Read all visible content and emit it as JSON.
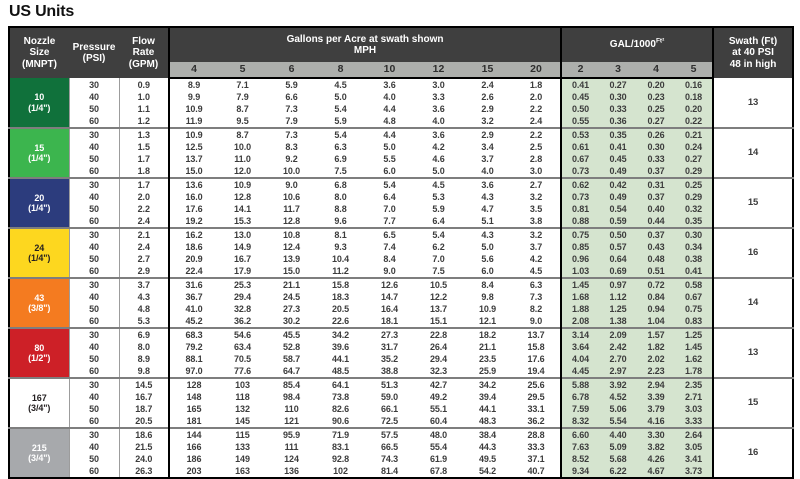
{
  "title": "US Units",
  "colors": {
    "header_bg": "#3f3f3f",
    "subheader_bg": "#adafac",
    "gal_block_bg": "#d5e4cf",
    "group_separator": "#7e7e7e",
    "text": "#3c3c3c"
  },
  "table": {
    "col_headers": {
      "nozzle": "Nozzle\nSize\n(MNPT)",
      "pressure": "Pressure\n(PSI)",
      "flow": "Flow\nRate\n(GPM)",
      "gpa_title": "Gallons per Acre at swath shown",
      "gpa_sub": "MPH",
      "mph_values": [
        "4",
        "5",
        "6",
        "8",
        "10",
        "12",
        "15",
        "20"
      ],
      "gal_title": "GAL/1000",
      "gal_sup": "Ft²",
      "gal_values": [
        "2",
        "3",
        "4",
        "5"
      ],
      "swath": "Swath (Ft)\nat 40 PSI\n48 in high"
    },
    "groups": [
      {
        "nozzle": "10",
        "size": "(1/4\")",
        "bg": "#10713b",
        "fg": "#ffffff",
        "swath": "13",
        "rows": [
          {
            "psi": "30",
            "gpm": "0.9",
            "mph": [
              "8.9",
              "7.1",
              "5.9",
              "4.5",
              "3.6",
              "3.0",
              "2.4",
              "1.8"
            ],
            "gal": [
              "0.41",
              "0.27",
              "0.20",
              "0.16"
            ]
          },
          {
            "psi": "40",
            "gpm": "1.0",
            "mph": [
              "9.9",
              "7.9",
              "6.6",
              "5.0",
              "4.0",
              "3.3",
              "2.6",
              "2.0"
            ],
            "gal": [
              "0.45",
              "0.30",
              "0.23",
              "0.18"
            ]
          },
          {
            "psi": "50",
            "gpm": "1.1",
            "mph": [
              "10.9",
              "8.7",
              "7.3",
              "5.4",
              "4.4",
              "3.6",
              "2.9",
              "2.2"
            ],
            "gal": [
              "0.50",
              "0.33",
              "0.25",
              "0.20"
            ]
          },
          {
            "psi": "60",
            "gpm": "1.2",
            "mph": [
              "11.9",
              "9.5",
              "7.9",
              "5.9",
              "4.8",
              "4.0",
              "3.2",
              "2.4"
            ],
            "gal": [
              "0.55",
              "0.36",
              "0.27",
              "0.22"
            ]
          }
        ]
      },
      {
        "nozzle": "15",
        "size": "(1/4\")",
        "bg": "#3cb54e",
        "fg": "#ffffff",
        "swath": "14",
        "rows": [
          {
            "psi": "30",
            "gpm": "1.3",
            "mph": [
              "10.9",
              "8.7",
              "7.3",
              "5.4",
              "4.4",
              "3.6",
              "2.9",
              "2.2"
            ],
            "gal": [
              "0.53",
              "0.35",
              "0.26",
              "0.21"
            ]
          },
          {
            "psi": "40",
            "gpm": "1.5",
            "mph": [
              "12.5",
              "10.0",
              "8.3",
              "6.3",
              "5.0",
              "4.2",
              "3.4",
              "2.5"
            ],
            "gal": [
              "0.61",
              "0.41",
              "0.30",
              "0.24"
            ]
          },
          {
            "psi": "50",
            "gpm": "1.7",
            "mph": [
              "13.7",
              "11.0",
              "9.2",
              "6.9",
              "5.5",
              "4.6",
              "3.7",
              "2.8"
            ],
            "gal": [
              "0.67",
              "0.45",
              "0.33",
              "0.27"
            ]
          },
          {
            "psi": "60",
            "gpm": "1.8",
            "mph": [
              "15.0",
              "12.0",
              "10.0",
              "7.5",
              "6.0",
              "5.0",
              "4.0",
              "3.0"
            ],
            "gal": [
              "0.73",
              "0.49",
              "0.37",
              "0.29"
            ]
          }
        ]
      },
      {
        "nozzle": "20",
        "size": "(1/4\")",
        "bg": "#2c3c7d",
        "fg": "#ffffff",
        "swath": "15",
        "rows": [
          {
            "psi": "30",
            "gpm": "1.7",
            "mph": [
              "13.6",
              "10.9",
              "9.0",
              "6.8",
              "5.4",
              "4.5",
              "3.6",
              "2.7"
            ],
            "gal": [
              "0.62",
              "0.42",
              "0.31",
              "0.25"
            ]
          },
          {
            "psi": "40",
            "gpm": "2.0",
            "mph": [
              "16.0",
              "12.8",
              "10.6",
              "8.0",
              "6.4",
              "5.3",
              "4.3",
              "3.2"
            ],
            "gal": [
              "0.73",
              "0.49",
              "0.37",
              "0.29"
            ]
          },
          {
            "psi": "50",
            "gpm": "2.2",
            "mph": [
              "17.6",
              "14.1",
              "11.7",
              "8.8",
              "7.0",
              "5.9",
              "4.7",
              "3.5"
            ],
            "gal": [
              "0.81",
              "0.54",
              "0.40",
              "0.32"
            ]
          },
          {
            "psi": "60",
            "gpm": "2.4",
            "mph": [
              "19.2",
              "15.3",
              "12.8",
              "9.6",
              "7.7",
              "6.4",
              "5.1",
              "3.8"
            ],
            "gal": [
              "0.88",
              "0.59",
              "0.44",
              "0.35"
            ]
          }
        ]
      },
      {
        "nozzle": "24",
        "size": "(1/4\")",
        "bg": "#fdd71f",
        "fg": "#231f20",
        "swath": "16",
        "rows": [
          {
            "psi": "30",
            "gpm": "2.1",
            "mph": [
              "16.2",
              "13.0",
              "10.8",
              "8.1",
              "6.5",
              "5.4",
              "4.3",
              "3.2"
            ],
            "gal": [
              "0.75",
              "0.50",
              "0.37",
              "0.30"
            ]
          },
          {
            "psi": "40",
            "gpm": "2.4",
            "mph": [
              "18.6",
              "14.9",
              "12.4",
              "9.3",
              "7.4",
              "6.2",
              "5.0",
              "3.7"
            ],
            "gal": [
              "0.85",
              "0.57",
              "0.43",
              "0.34"
            ]
          },
          {
            "psi": "50",
            "gpm": "2.7",
            "mph": [
              "20.9",
              "16.7",
              "13.9",
              "10.4",
              "8.4",
              "7.0",
              "5.6",
              "4.2"
            ],
            "gal": [
              "0.96",
              "0.64",
              "0.48",
              "0.38"
            ]
          },
          {
            "psi": "60",
            "gpm": "2.9",
            "mph": [
              "22.4",
              "17.9",
              "15.0",
              "11.2",
              "9.0",
              "7.5",
              "6.0",
              "4.5"
            ],
            "gal": [
              "1.03",
              "0.69",
              "0.51",
              "0.41"
            ]
          }
        ]
      },
      {
        "nozzle": "43",
        "size": "(3/8\")",
        "bg": "#f47b20",
        "fg": "#ffffff",
        "swath": "14",
        "rows": [
          {
            "psi": "30",
            "gpm": "3.7",
            "mph": [
              "31.6",
              "25.3",
              "21.1",
              "15.8",
              "12.6",
              "10.5",
              "8.4",
              "6.3"
            ],
            "gal": [
              "1.45",
              "0.97",
              "0.72",
              "0.58"
            ]
          },
          {
            "psi": "40",
            "gpm": "4.3",
            "mph": [
              "36.7",
              "29.4",
              "24.5",
              "18.3",
              "14.7",
              "12.2",
              "9.8",
              "7.3"
            ],
            "gal": [
              "1.68",
              "1.12",
              "0.84",
              "0.67"
            ]
          },
          {
            "psi": "50",
            "gpm": "4.8",
            "mph": [
              "41.0",
              "32.8",
              "27.3",
              "20.5",
              "16.4",
              "13.7",
              "10.9",
              "8.2"
            ],
            "gal": [
              "1.88",
              "1.25",
              "0.94",
              "0.75"
            ]
          },
          {
            "psi": "60",
            "gpm": "5.3",
            "mph": [
              "45.2",
              "36.2",
              "30.2",
              "22.6",
              "18.1",
              "15.1",
              "12.1",
              "9.0"
            ],
            "gal": [
              "2.08",
              "1.38",
              "1.04",
              "0.83"
            ]
          }
        ]
      },
      {
        "nozzle": "80",
        "size": "(1/2\")",
        "bg": "#cd2027",
        "fg": "#ffffff",
        "swath": "13",
        "rows": [
          {
            "psi": "30",
            "gpm": "6.9",
            "mph": [
              "68.3",
              "54.6",
              "45.5",
              "34.2",
              "27.3",
              "22.8",
              "18.2",
              "13.7"
            ],
            "gal": [
              "3.14",
              "2.09",
              "1.57",
              "1.25"
            ]
          },
          {
            "psi": "40",
            "gpm": "8.0",
            "mph": [
              "79.2",
              "63.4",
              "52.8",
              "39.6",
              "31.7",
              "26.4",
              "21.1",
              "15.8"
            ],
            "gal": [
              "3.64",
              "2.42",
              "1.82",
              "1.45"
            ]
          },
          {
            "psi": "50",
            "gpm": "8.9",
            "mph": [
              "88.1",
              "70.5",
              "58.7",
              "44.1",
              "35.2",
              "29.4",
              "23.5",
              "17.6"
            ],
            "gal": [
              "4.04",
              "2.70",
              "2.02",
              "1.62"
            ]
          },
          {
            "psi": "60",
            "gpm": "9.8",
            "mph": [
              "97.0",
              "77.6",
              "64.7",
              "48.5",
              "38.8",
              "32.3",
              "25.9",
              "19.4"
            ],
            "gal": [
              "4.45",
              "2.97",
              "2.23",
              "1.78"
            ]
          }
        ]
      },
      {
        "nozzle": "167",
        "size": "(3/4\")",
        "bg": "#ffffff",
        "fg": "#231f20",
        "swath": "15",
        "rows": [
          {
            "psi": "30",
            "gpm": "14.5",
            "mph": [
              "128",
              "103",
              "85.4",
              "64.1",
              "51.3",
              "42.7",
              "34.2",
              "25.6"
            ],
            "gal": [
              "5.88",
              "3.92",
              "2.94",
              "2.35"
            ]
          },
          {
            "psi": "40",
            "gpm": "16.7",
            "mph": [
              "148",
              "118",
              "98.4",
              "73.8",
              "59.0",
              "49.2",
              "39.4",
              "29.5"
            ],
            "gal": [
              "6.78",
              "4.52",
              "3.39",
              "2.71"
            ]
          },
          {
            "psi": "50",
            "gpm": "18.7",
            "mph": [
              "165",
              "132",
              "110",
              "82.6",
              "66.1",
              "55.1",
              "44.1",
              "33.1"
            ],
            "gal": [
              "7.59",
              "5.06",
              "3.79",
              "3.03"
            ]
          },
          {
            "psi": "60",
            "gpm": "20.5",
            "mph": [
              "181",
              "145",
              "121",
              "90.6",
              "72.5",
              "60.4",
              "48.3",
              "36.2"
            ],
            "gal": [
              "8.32",
              "5.54",
              "4.16",
              "3.33"
            ]
          }
        ]
      },
      {
        "nozzle": "215",
        "size": "(3/4\")",
        "bg": "#a7a9ac",
        "fg": "#ffffff",
        "swath": "16",
        "rows": [
          {
            "psi": "30",
            "gpm": "18.6",
            "mph": [
              "144",
              "115",
              "95.9",
              "71.9",
              "57.5",
              "48.0",
              "38.4",
              "28.8"
            ],
            "gal": [
              "6.60",
              "4.40",
              "3.30",
              "2.64"
            ]
          },
          {
            "psi": "40",
            "gpm": "21.5",
            "mph": [
              "166",
              "133",
              "111",
              "83.1",
              "66.5",
              "55.4",
              "44.3",
              "33.3"
            ],
            "gal": [
              "7.63",
              "5.09",
              "3.82",
              "3.05"
            ]
          },
          {
            "psi": "50",
            "gpm": "24.0",
            "mph": [
              "186",
              "149",
              "124",
              "92.8",
              "74.3",
              "61.9",
              "49.5",
              "37.1"
            ],
            "gal": [
              "8.52",
              "5.68",
              "4.26",
              "3.41"
            ]
          },
          {
            "psi": "60",
            "gpm": "26.3",
            "mph": [
              "203",
              "163",
              "136",
              "102",
              "81.4",
              "67.8",
              "54.2",
              "40.7"
            ],
            "gal": [
              "9.34",
              "6.22",
              "4.67",
              "3.73"
            ]
          }
        ]
      }
    ]
  }
}
